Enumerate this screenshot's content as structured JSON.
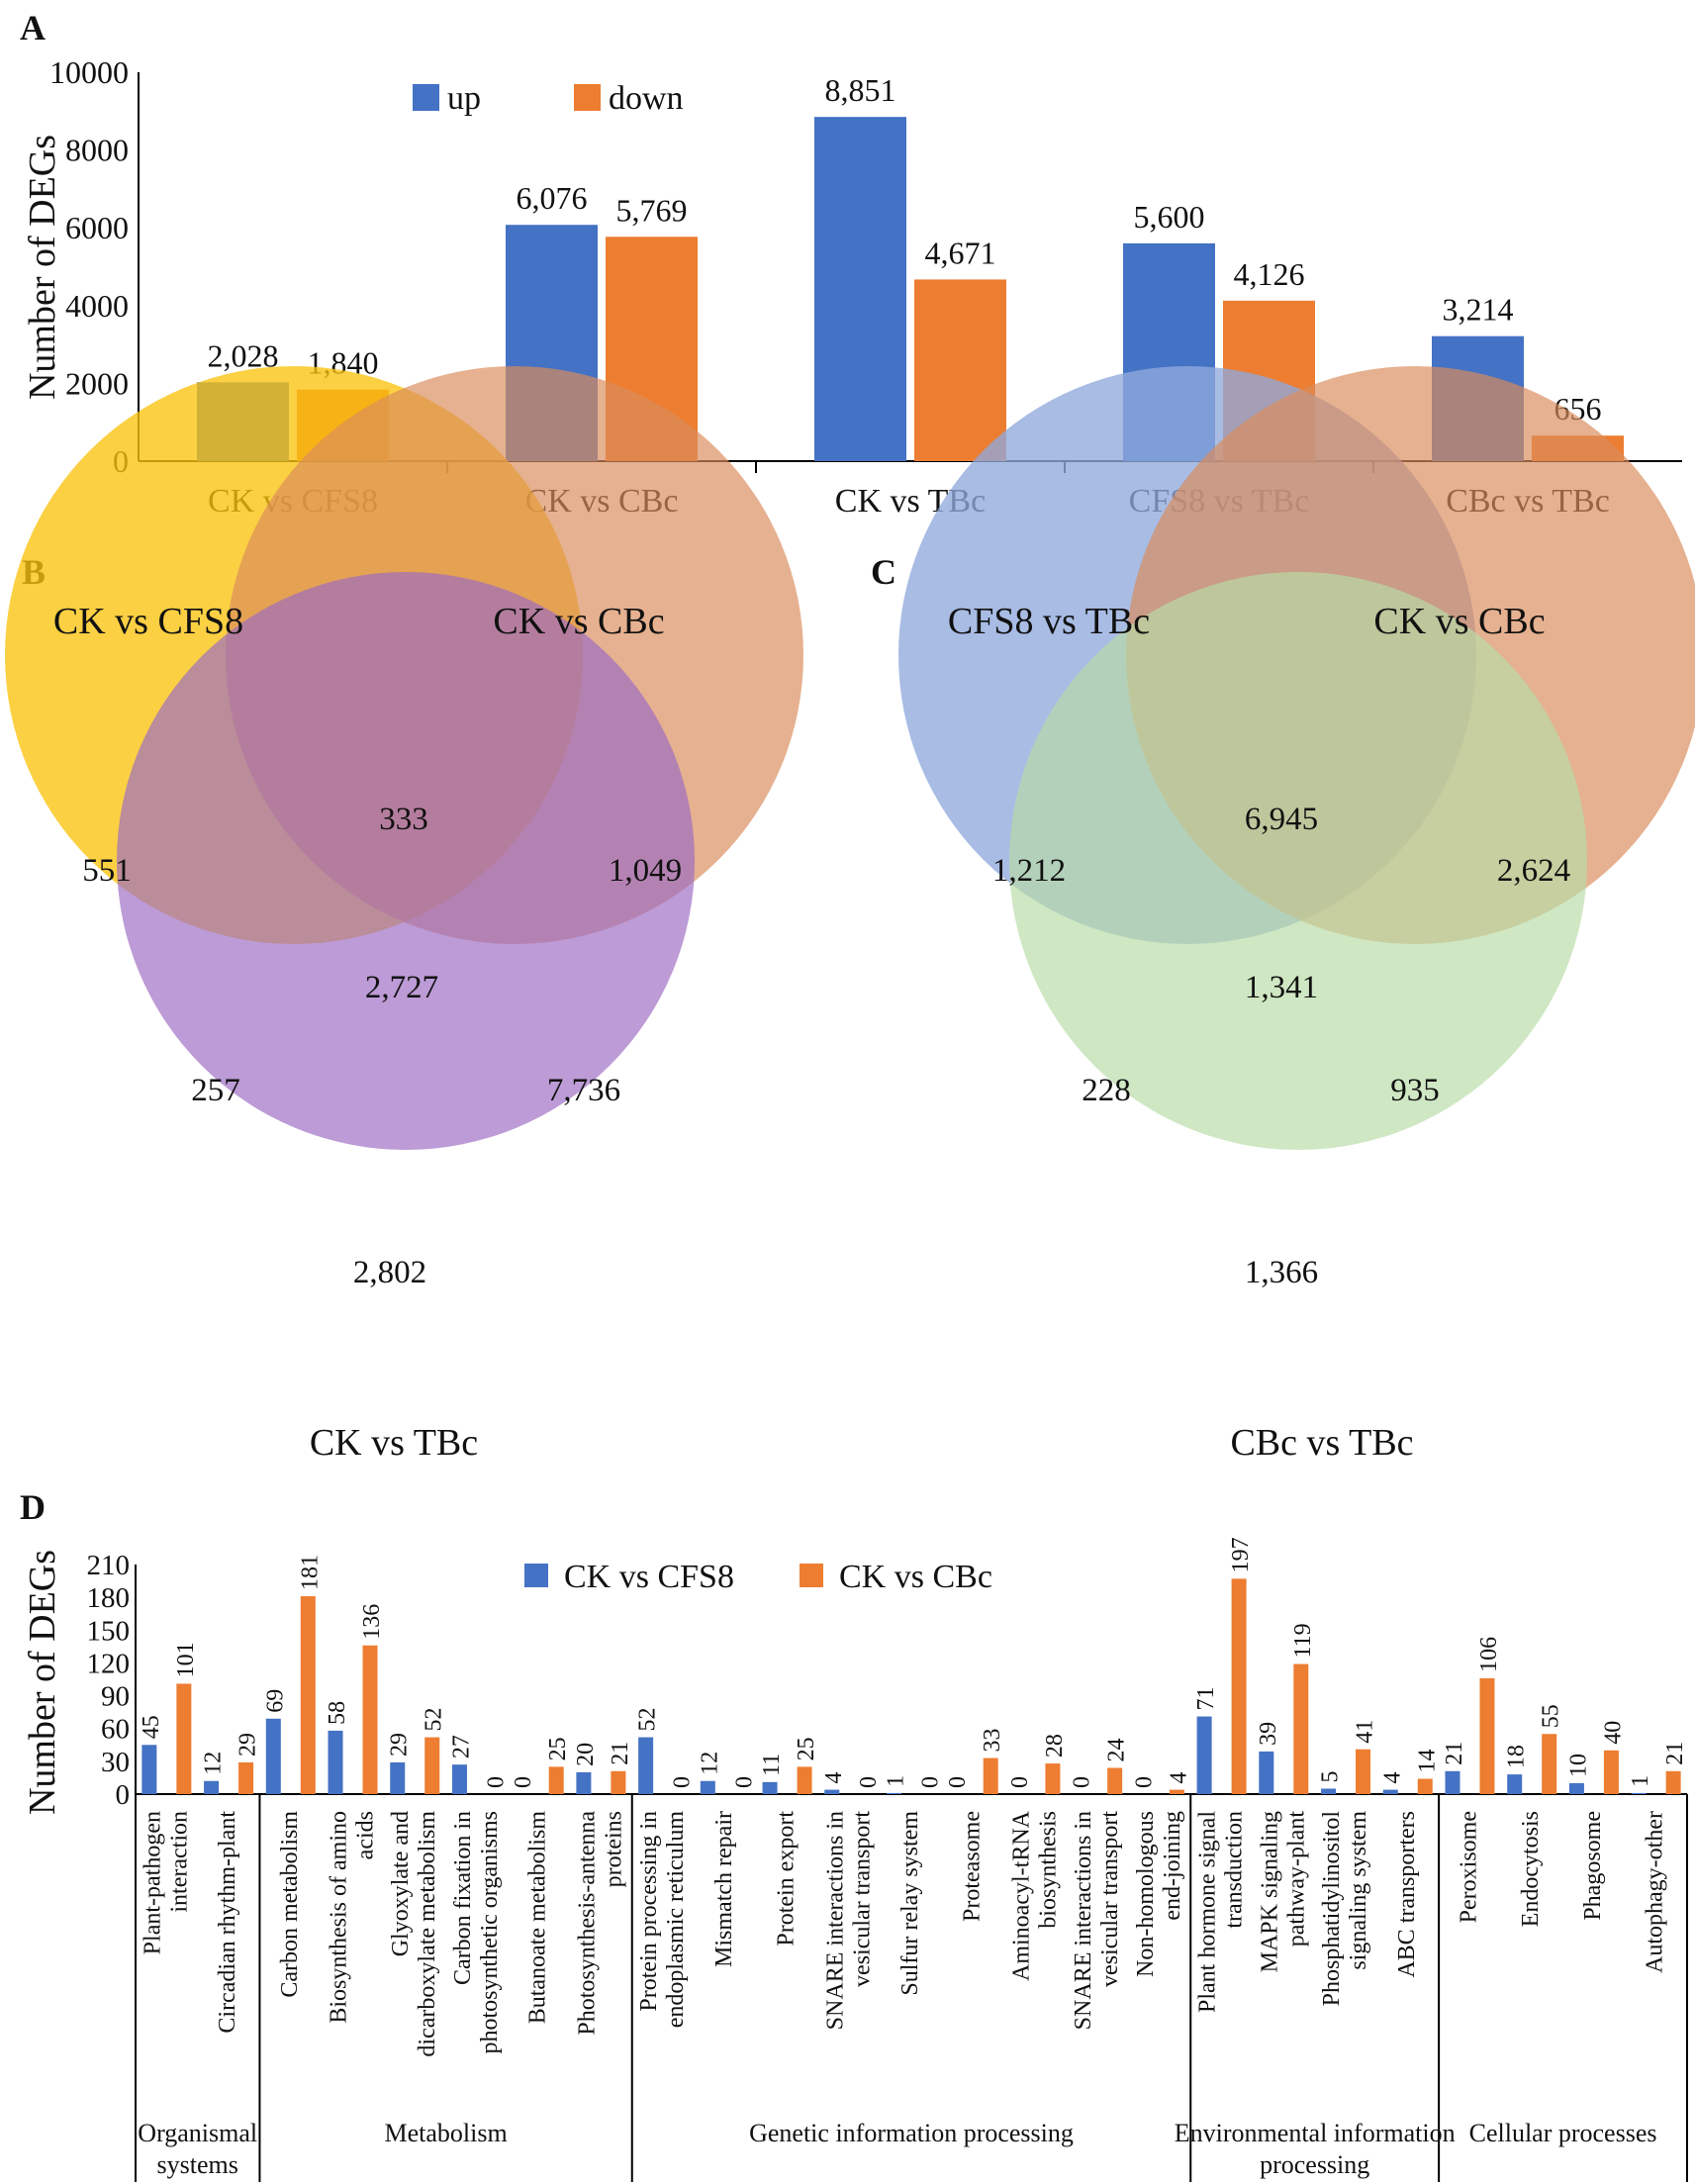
{
  "colors": {
    "up": "#4472C4",
    "down": "#ED7D31",
    "venn_b": [
      "#FAC30E",
      "#DA8C5C",
      "#9C6BC2"
    ],
    "venn_c": [
      "#8FA9DC",
      "#DA8C5C",
      "#B8DCA6"
    ]
  },
  "chart_data": [
    {
      "panel": "A",
      "type": "bar",
      "ylabel": "Number of DEGs",
      "ylim": [
        0,
        10000
      ],
      "yticks": [
        "0",
        "2000",
        "4000",
        "6000",
        "8000",
        "10000"
      ],
      "categories": [
        "CK vs CFS8",
        "CK vs CBc",
        "CK vs TBc",
        "CFS8 vs TBc",
        "CBc vs TBc"
      ],
      "series": [
        {
          "name": "up",
          "values": [
            2028,
            6076,
            8851,
            5600,
            3214
          ],
          "labels": [
            "2,028",
            "6,076",
            "8,851",
            "5,600",
            "3,214"
          ]
        },
        {
          "name": "down",
          "values": [
            1840,
            5769,
            4671,
            4126,
            656
          ],
          "labels": [
            "1,840",
            "5,769",
            "4,671",
            "4,126",
            "656"
          ]
        }
      ],
      "legend": "top"
    },
    {
      "panel": "B",
      "type": "venn",
      "sets": [
        "CK vs CFS8",
        "CK vs CBc",
        "CK vs TBc"
      ],
      "regions": {
        "only_1": "551",
        "only_2": "1,049",
        "only_3": "2,802",
        "1_2": "333",
        "1_3": "257",
        "2_3": "7,736",
        "1_2_3": "2,727"
      }
    },
    {
      "panel": "C",
      "type": "venn",
      "sets": [
        "CFS8 vs TBc",
        "CK vs CBc",
        "CBc vs TBc"
      ],
      "regions": {
        "only_1": "1,212",
        "only_2": "2,624",
        "only_3": "1,366",
        "1_2": "6,945",
        "1_3": "228",
        "2_3": "935",
        "1_2_3": "1,341"
      }
    },
    {
      "panel": "D",
      "type": "bar",
      "ylabel": "Number of DEGs",
      "ylim": [
        0,
        210
      ],
      "yticks": [
        "0",
        "30",
        "60",
        "90",
        "120",
        "150",
        "180",
        "210"
      ],
      "categories": [
        "Plant-pathogen interaction",
        "Circadian rhythm-plant",
        "Carbon metabolism",
        "Biosynthesis of amino acids",
        "Glyoxylate and dicarboxylate metabolism",
        "Carbon fixation in photosynthetic organisms",
        "Butanoate metabolism",
        "Photosynthesis-antenna proteins",
        "Protein processing in endoplasmic reticulum",
        "Mismatch repair",
        "Protein export",
        "SNARE interactions in vesicular transport",
        "Sulfur relay system",
        "Proteasome",
        "Aminoacyl-tRNA biosynthesis",
        "SNARE interactions in vesicular transport",
        "Non-homologous end-joining",
        "Plant hormone signal transduction",
        "MAPK signaling pathway-plant",
        "Phosphatidylinositol signaling system",
        "ABC transporters",
        "Peroxisome",
        "Endocytosis",
        "Phagosome",
        "Autophagy-other"
      ],
      "series": [
        {
          "name": "CK vs CFS8",
          "values": [
            45,
            12,
            69,
            58,
            29,
            27,
            0,
            20,
            52,
            12,
            11,
            4,
            1,
            0,
            0,
            0,
            0,
            71,
            39,
            5,
            4,
            21,
            18,
            10,
            1
          ]
        },
        {
          "name": "CK vs CBc",
          "values": [
            101,
            29,
            181,
            136,
            52,
            0,
            25,
            21,
            0,
            0,
            25,
            0,
            0,
            33,
            28,
            24,
            4,
            197,
            119,
            41,
            14,
            106,
            55,
            40,
            21
          ]
        }
      ],
      "groups": [
        {
          "label": "Organismal systems",
          "count": 2
        },
        {
          "label": "Metabolism",
          "count": 6
        },
        {
          "label": "Genetic information processing",
          "count": 9
        },
        {
          "label": "Environmental information processing",
          "count": 4
        },
        {
          "label": "Cellular processes",
          "count": 4
        }
      ],
      "legend": "top"
    }
  ]
}
